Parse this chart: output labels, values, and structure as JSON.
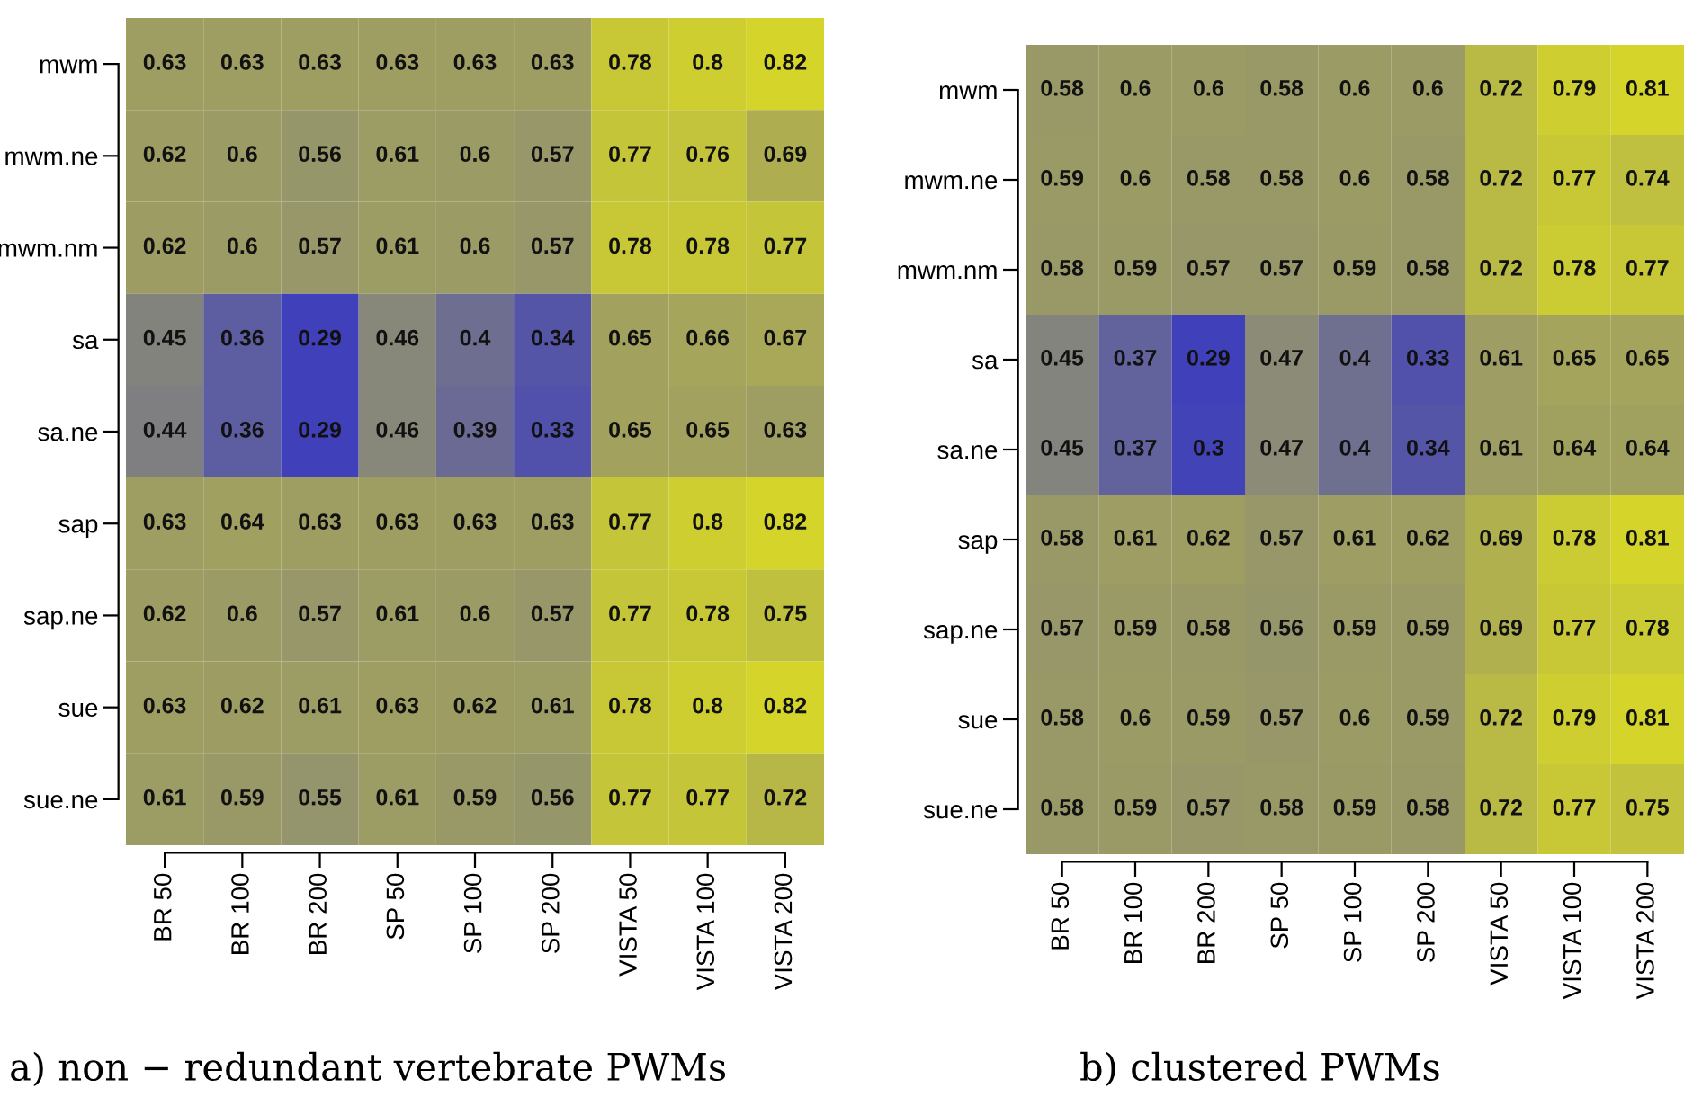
{
  "chart_data": [
    {
      "type": "heatmap",
      "title": "a) non − redundant vertebrate PWMs",
      "data_labels": true,
      "categories": [
        "BR 50",
        "BR 100",
        "BR 200",
        "SP 50",
        "SP 100",
        "SP 200",
        "VISTA 50",
        "VISTA 100",
        "VISTA 200"
      ],
      "y_categories": [
        "mwm",
        "mwm.ne",
        "mwm.nm",
        "sa",
        "sa.ne",
        "sap",
        "sap.ne",
        "sue",
        "sue.ne"
      ],
      "cells": [
        [
          0.63,
          0.63,
          0.63,
          0.63,
          0.63,
          0.63,
          0.78,
          0.8,
          0.82
        ],
        [
          0.62,
          0.6,
          0.56,
          0.61,
          0.6,
          0.57,
          0.77,
          0.76,
          0.69
        ],
        [
          0.62,
          0.6,
          0.57,
          0.61,
          0.6,
          0.57,
          0.78,
          0.78,
          0.77
        ],
        [
          0.45,
          0.36,
          0.29,
          0.46,
          0.4,
          0.34,
          0.65,
          0.66,
          0.67
        ],
        [
          0.44,
          0.36,
          0.29,
          0.46,
          0.39,
          0.33,
          0.65,
          0.65,
          0.63
        ],
        [
          0.63,
          0.64,
          0.63,
          0.63,
          0.63,
          0.63,
          0.77,
          0.8,
          0.82
        ],
        [
          0.62,
          0.6,
          0.57,
          0.61,
          0.6,
          0.57,
          0.77,
          0.78,
          0.75
        ],
        [
          0.63,
          0.62,
          0.61,
          0.63,
          0.62,
          0.61,
          0.78,
          0.8,
          0.82
        ],
        [
          0.61,
          0.59,
          0.55,
          0.61,
          0.59,
          0.56,
          0.77,
          0.77,
          0.72
        ]
      ]
    },
    {
      "type": "heatmap",
      "title": "b) clustered PWMs",
      "data_labels": true,
      "categories": [
        "BR 50",
        "BR 100",
        "BR 200",
        "SP 50",
        "SP 100",
        "SP 200",
        "VISTA 50",
        "VISTA 100",
        "VISTA 200"
      ],
      "y_categories": [
        "mwm",
        "mwm.ne",
        "mwm.nm",
        "sa",
        "sa.ne",
        "sap",
        "sap.ne",
        "sue",
        "sue.ne"
      ],
      "cells": [
        [
          0.58,
          0.6,
          0.6,
          0.58,
          0.6,
          0.6,
          0.72,
          0.79,
          0.81
        ],
        [
          0.59,
          0.6,
          0.58,
          0.58,
          0.6,
          0.58,
          0.72,
          0.77,
          0.74
        ],
        [
          0.58,
          0.59,
          0.57,
          0.57,
          0.59,
          0.58,
          0.72,
          0.78,
          0.77
        ],
        [
          0.45,
          0.37,
          0.29,
          0.47,
          0.4,
          0.33,
          0.61,
          0.65,
          0.65
        ],
        [
          0.45,
          0.37,
          0.3,
          0.47,
          0.4,
          0.34,
          0.61,
          0.64,
          0.64
        ],
        [
          0.58,
          0.61,
          0.62,
          0.57,
          0.61,
          0.62,
          0.69,
          0.78,
          0.81
        ],
        [
          0.57,
          0.59,
          0.58,
          0.56,
          0.59,
          0.59,
          0.69,
          0.77,
          0.78
        ],
        [
          0.58,
          0.6,
          0.59,
          0.57,
          0.6,
          0.59,
          0.72,
          0.79,
          0.81
        ],
        [
          0.58,
          0.59,
          0.57,
          0.58,
          0.59,
          0.58,
          0.72,
          0.77,
          0.75
        ]
      ]
    }
  ]
}
